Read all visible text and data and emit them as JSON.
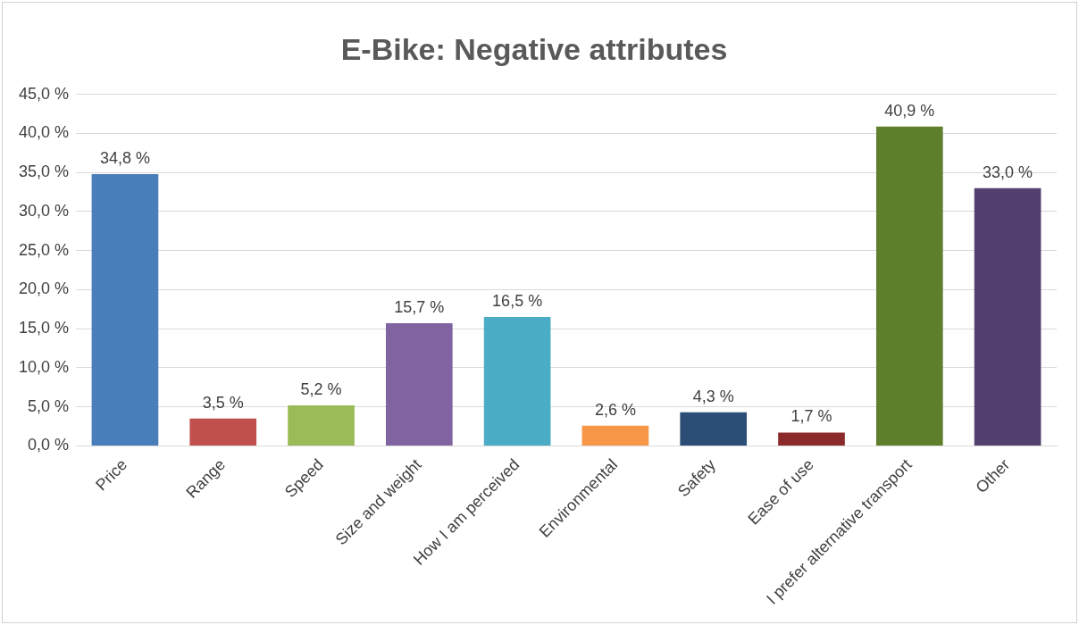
{
  "chart_data": {
    "type": "bar",
    "title": "E-Bike: Negative attributes",
    "categories": [
      "Price",
      "Range",
      "Speed",
      "Size and weight",
      "How I am perceived",
      "Environmental",
      "Safety",
      "Ease of use",
      "I prefer alternative transport",
      "Other"
    ],
    "values": [
      34.8,
      3.5,
      5.2,
      15.7,
      16.5,
      2.6,
      4.3,
      1.7,
      40.9,
      33.0
    ],
    "value_labels": [
      "34,8 %",
      "3,5 %",
      "5,2 %",
      "15,7 %",
      "16,5 %",
      "2,6 %",
      "4,3 %",
      "1,7 %",
      "40,9 %",
      "33,0 %"
    ],
    "colors": [
      "#4a7ebb",
      "#c0504d",
      "#9bbb59",
      "#8064a2",
      "#4bacc6",
      "#f79646",
      "#2c4d75",
      "#8b2a2a",
      "#5f7f2d",
      "#54406e"
    ],
    "ylim": [
      0,
      45
    ],
    "yticks": [
      {
        "value": 0,
        "label": "0,0 %"
      },
      {
        "value": 5,
        "label": "5,0 %"
      },
      {
        "value": 10,
        "label": "10,0 %"
      },
      {
        "value": 15,
        "label": "15,0 %"
      },
      {
        "value": 20,
        "label": "20,0 %"
      },
      {
        "value": 25,
        "label": "25,0 %"
      },
      {
        "value": 30,
        "label": "30,0 %"
      },
      {
        "value": 35,
        "label": "35,0 %"
      },
      {
        "value": 40,
        "label": "40,0 %"
      },
      {
        "value": 45,
        "label": "45,0 %"
      }
    ],
    "grid": "y",
    "legend": false
  }
}
